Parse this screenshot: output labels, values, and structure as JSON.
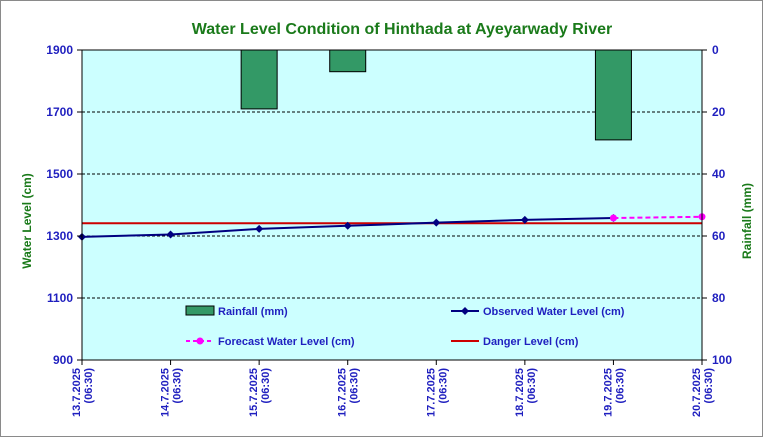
{
  "chart_data": {
    "type": "line",
    "title": "Water Level Condition of Hinthada at Ayeyarwady River",
    "ylabel": "Water Level (cm)",
    "y2label": "Rainfall (mm)",
    "categories": [
      "13.7.2025 (06:30)",
      "14.7.2025 (06:30)",
      "15.7.2025 (06:30)",
      "16.7.2025 (06:30)",
      "17.7.2025 (06:30)",
      "18.7.2025 (06:30)",
      "19.7.2025 (06:30)",
      "20.7.2025 (06:30)"
    ],
    "ylim": [
      900,
      1900
    ],
    "yticks": [
      900,
      1100,
      1300,
      1500,
      1700,
      1900
    ],
    "y2lim": [
      0,
      100
    ],
    "y2ticks": [
      0,
      20,
      40,
      60,
      80,
      100
    ],
    "y2_inverted": true,
    "grid": "horizontal dashed",
    "series": [
      {
        "name": "Rainfall (mm)",
        "type": "bar",
        "axis": "y2",
        "color": "#339966",
        "values": [
          0,
          0,
          19,
          7,
          0,
          0,
          29,
          0
        ]
      },
      {
        "name": "Observed Water Level (cm)",
        "type": "line",
        "axis": "y",
        "color": "#000080",
        "values": [
          1297,
          1305,
          1323,
          1333,
          1343,
          1352,
          1358,
          null
        ]
      },
      {
        "name": "Forecast Water Level (cm)",
        "type": "line",
        "axis": "y",
        "color": "#ff00ff",
        "dash": true,
        "values": [
          null,
          null,
          null,
          null,
          null,
          null,
          1358,
          1362
        ]
      },
      {
        "name": "Danger Level (cm)",
        "type": "line",
        "axis": "y",
        "color": "#cc0000",
        "values": [
          1341,
          1341,
          1341,
          1341,
          1341,
          1341,
          1341,
          1341
        ]
      }
    ],
    "colors": {
      "plot_bg": "#ccffff",
      "title": "#1a7a1a",
      "ticks": "#1f1fbf"
    }
  }
}
